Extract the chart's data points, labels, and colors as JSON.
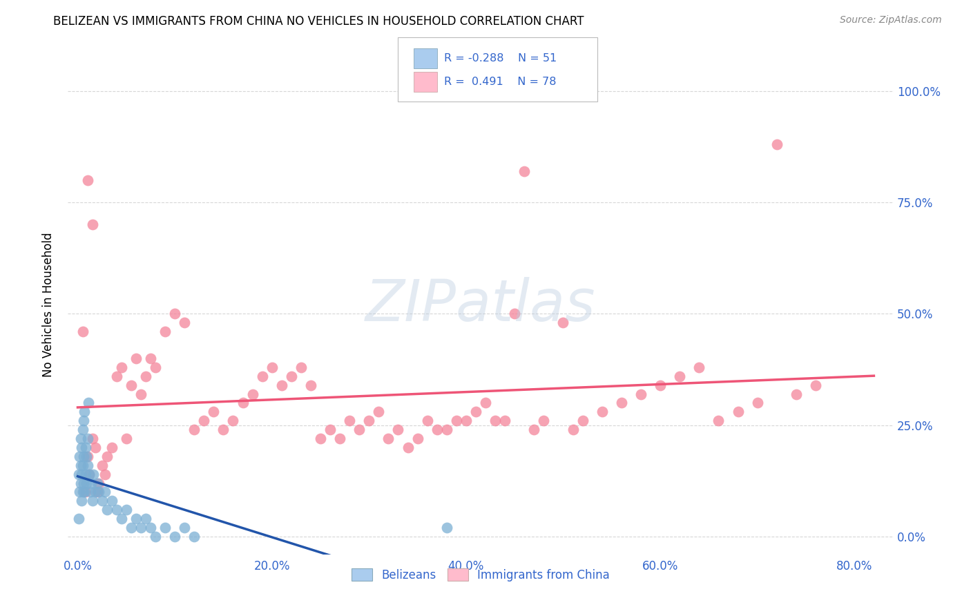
{
  "title": "BELIZEAN VS IMMIGRANTS FROM CHINA NO VEHICLES IN HOUSEHOLD CORRELATION CHART",
  "source": "Source: ZipAtlas.com",
  "ylabel_label": "No Vehicles in Household",
  "xlim": [
    -0.01,
    0.84
  ],
  "ylim": [
    -0.04,
    1.08
  ],
  "xtick_vals": [
    0.0,
    0.2,
    0.4,
    0.6,
    0.8
  ],
  "ytick_vals": [
    0.0,
    0.25,
    0.5,
    0.75,
    1.0
  ],
  "legend_label1": "Belizeans",
  "legend_label2": "Immigrants from China",
  "color_blue": "#7BAFD4",
  "color_pink": "#F4849A",
  "color_blue_line": "#2255AA",
  "color_pink_line": "#EE5577",
  "color_blue_legend_box": "#AACCEE",
  "color_pink_legend_box": "#FFBBCC",
  "watermark": "ZIPatlas",
  "title_fontsize": 12,
  "axis_label_color": "#3366CC",
  "grid_color": "#CCCCCC",
  "blue_x": [
    0.001,
    0.002,
    0.002,
    0.003,
    0.003,
    0.003,
    0.004,
    0.004,
    0.004,
    0.005,
    0.005,
    0.005,
    0.006,
    0.006,
    0.006,
    0.007,
    0.007,
    0.008,
    0.008,
    0.009,
    0.009,
    0.01,
    0.01,
    0.011,
    0.012,
    0.013,
    0.014,
    0.015,
    0.016,
    0.018,
    0.02,
    0.022,
    0.025,
    0.028,
    0.03,
    0.035,
    0.04,
    0.045,
    0.05,
    0.055,
    0.06,
    0.065,
    0.07,
    0.075,
    0.08,
    0.09,
    0.1,
    0.11,
    0.12,
    0.38,
    0.001
  ],
  "blue_y": [
    0.14,
    0.1,
    0.18,
    0.12,
    0.16,
    0.22,
    0.08,
    0.14,
    0.2,
    0.1,
    0.16,
    0.24,
    0.12,
    0.18,
    0.26,
    0.1,
    0.28,
    0.14,
    0.2,
    0.12,
    0.18,
    0.16,
    0.22,
    0.3,
    0.14,
    0.1,
    0.12,
    0.08,
    0.14,
    0.1,
    0.12,
    0.1,
    0.08,
    0.1,
    0.06,
    0.08,
    0.06,
    0.04,
    0.06,
    0.02,
    0.04,
    0.02,
    0.04,
    0.02,
    0.0,
    0.02,
    0.0,
    0.02,
    0.0,
    0.02,
    0.04
  ],
  "pink_x": [
    0.005,
    0.008,
    0.01,
    0.012,
    0.015,
    0.018,
    0.02,
    0.022,
    0.025,
    0.028,
    0.03,
    0.035,
    0.04,
    0.045,
    0.05,
    0.055,
    0.06,
    0.065,
    0.07,
    0.075,
    0.08,
    0.09,
    0.1,
    0.11,
    0.12,
    0.13,
    0.14,
    0.15,
    0.16,
    0.17,
    0.18,
    0.19,
    0.2,
    0.21,
    0.22,
    0.23,
    0.24,
    0.25,
    0.26,
    0.27,
    0.28,
    0.29,
    0.3,
    0.31,
    0.32,
    0.33,
    0.34,
    0.35,
    0.36,
    0.37,
    0.38,
    0.39,
    0.4,
    0.41,
    0.42,
    0.43,
    0.44,
    0.45,
    0.46,
    0.47,
    0.48,
    0.5,
    0.51,
    0.52,
    0.54,
    0.56,
    0.58,
    0.6,
    0.62,
    0.64,
    0.66,
    0.68,
    0.7,
    0.72,
    0.74,
    0.76,
    0.01,
    0.015
  ],
  "pink_y": [
    0.46,
    0.1,
    0.18,
    0.14,
    0.22,
    0.2,
    0.1,
    0.12,
    0.16,
    0.14,
    0.18,
    0.2,
    0.36,
    0.38,
    0.22,
    0.34,
    0.4,
    0.32,
    0.36,
    0.4,
    0.38,
    0.46,
    0.5,
    0.48,
    0.24,
    0.26,
    0.28,
    0.24,
    0.26,
    0.3,
    0.32,
    0.36,
    0.38,
    0.34,
    0.36,
    0.38,
    0.34,
    0.22,
    0.24,
    0.22,
    0.26,
    0.24,
    0.26,
    0.28,
    0.22,
    0.24,
    0.2,
    0.22,
    0.26,
    0.24,
    0.24,
    0.26,
    0.26,
    0.28,
    0.3,
    0.26,
    0.26,
    0.5,
    0.82,
    0.24,
    0.26,
    0.48,
    0.24,
    0.26,
    0.28,
    0.3,
    0.32,
    0.34,
    0.36,
    0.38,
    0.26,
    0.28,
    0.3,
    0.88,
    0.32,
    0.34,
    0.8,
    0.7
  ]
}
